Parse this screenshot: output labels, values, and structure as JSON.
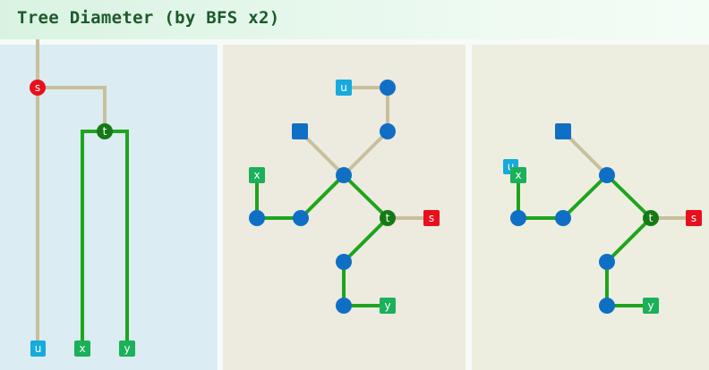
{
  "title": "Tree Diameter (by BFS x2)",
  "colors": {
    "tree_edge": "#c8bf9d",
    "path_edge": "#1ea41e",
    "node": "#0f6fc5",
    "s": "#e8101c",
    "t": "#157a16",
    "u": "#17aadd",
    "leaf": "#1bb05a",
    "panel1_bg": "#dbecf2",
    "panel2_bg": "#edeadf",
    "panel3_bg": "#eeeee0"
  },
  "labels": {
    "s": "s",
    "t": "t",
    "u": "u",
    "x": "x",
    "y": "y"
  }
}
